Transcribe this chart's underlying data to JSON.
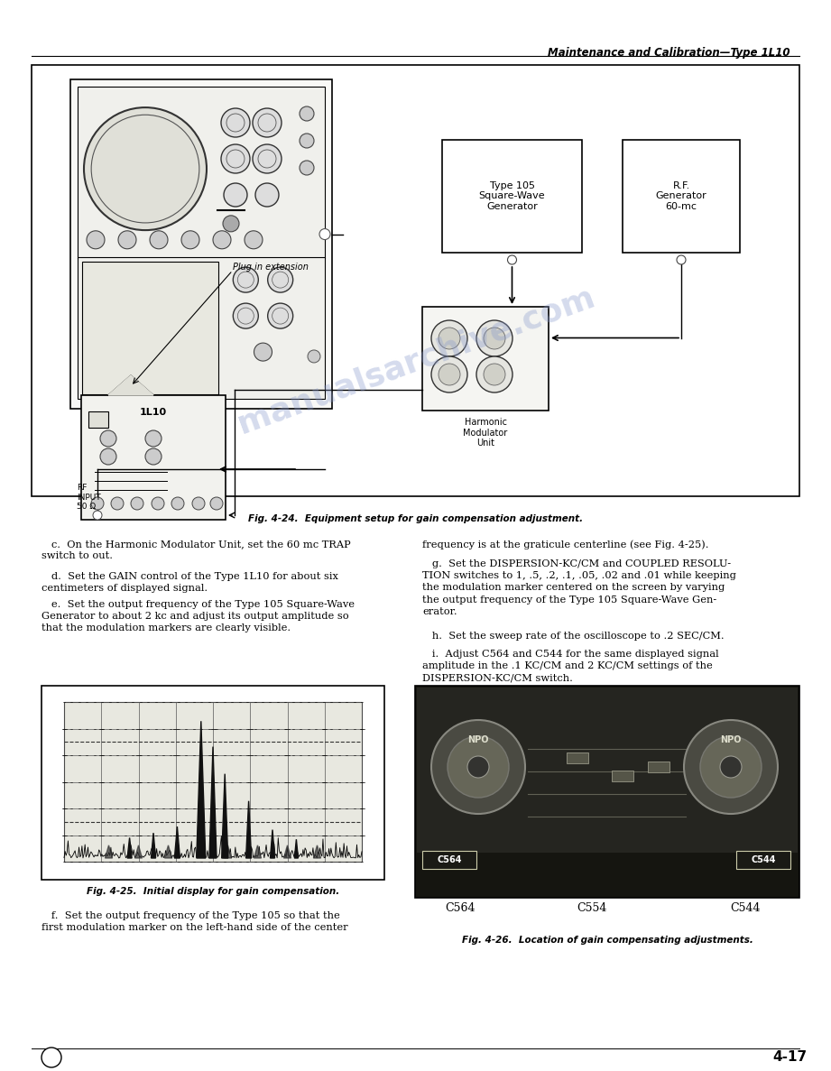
{
  "page_bg": "#ffffff",
  "header_text": "Maintenance and Calibration—Type 1L10",
  "header_fontsize": 8.5,
  "fig_caption_24": "Fig. 4-24.  Equipment setup for gain compensation adjustment.",
  "fig_caption_25": "Fig. 4-25.  Initial display for gain compensation.",
  "fig_caption_26": "Fig. 4-26.  Location of gain compensating adjustments.",
  "watermark_text": "manualsarchive.com",
  "watermark_color": "#8899cc",
  "watermark_alpha": 0.35,
  "footer_page": "4-17",
  "body_paragraphs_left": [
    "   c.  On the Harmonic Modulator Unit, set the 60 mc TRAP\nswitch to out.",
    "   d.  Set the GAIN control of the Type 1L10 for about six\ncentimeters of displayed signal.",
    "   e.  Set the output frequency of the Type 105 Square-Wave\nGenerator to about 2 kc and adjust its output amplitude so\nthat the modulation markers are clearly visible."
  ],
  "body_paragraphs_right": [
    "frequency is at the graticule centerline (see Fig. 4-25).",
    "   g.  Set the DISPERSION-KC/CM and COUPLED RESOLU-\nTION switches to 1, .5, .2, .1, .05, .02 and .01 while keeping\nthe modulation marker centered on the screen by varying\nthe output frequency of the Type 105 Square-Wave Gen-\nerator.",
    "   h.  Set the sweep rate of the oscilloscope to .2 SEC/CM.",
    "   i.  Adjust C564 and C544 for the same displayed signal\namplitude in the .1 KC/CM and 2 KC/CM settings of the\nDISPERSION-KC/CM switch."
  ],
  "body_para_f": "   f.  Set the output frequency of the Type 105 so that the\nfirst modulation marker on the left-hand side of the center"
}
